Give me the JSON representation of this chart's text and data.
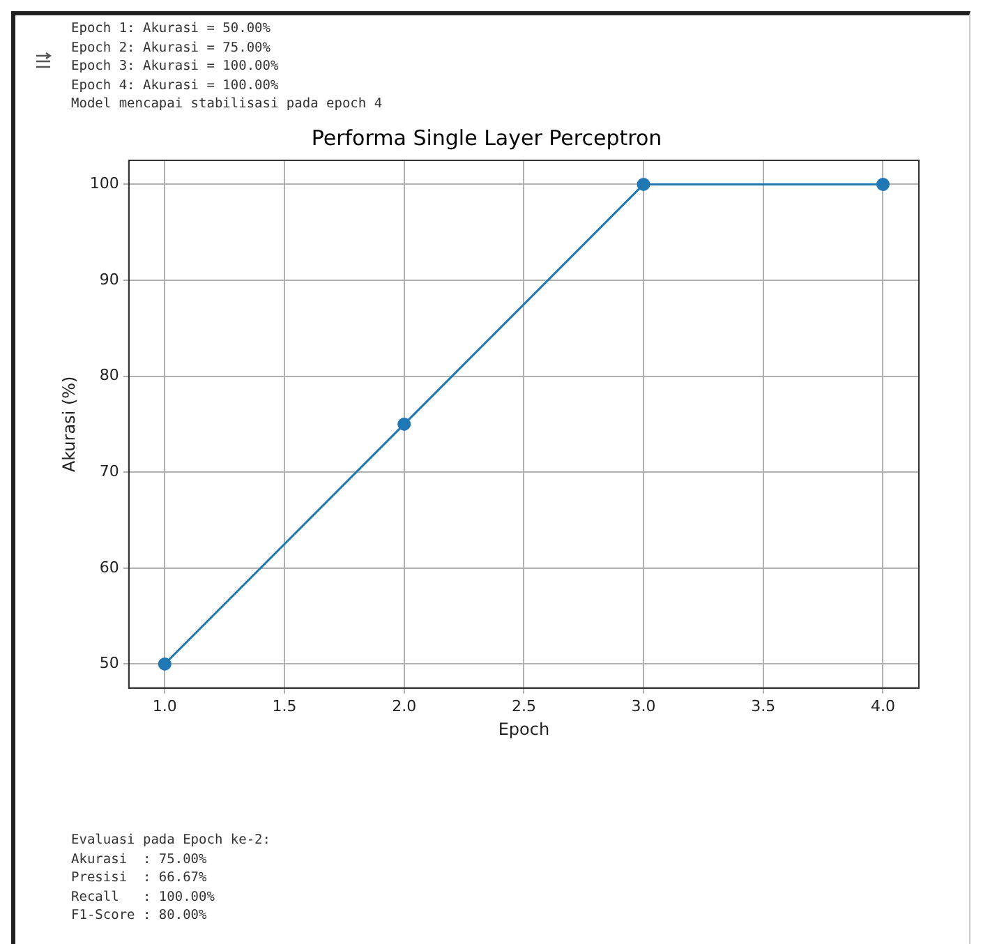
{
  "chart_data": {
    "type": "line",
    "title": "Performa Single Layer Perceptron",
    "xlabel": "Epoch",
    "ylabel": "Akurasi (%)",
    "x": [
      1,
      2,
      3,
      4
    ],
    "series": [
      {
        "color": "#1f77b4",
        "values": [
          50,
          75,
          100,
          100
        ]
      }
    ],
    "xlim": [
      0.85,
      4.15
    ],
    "ylim": [
      47.5,
      102.5
    ],
    "xticks": [
      {
        "value": 1,
        "label": "1.0"
      },
      {
        "value": 1.5,
        "label": "1.5"
      },
      {
        "value": 2,
        "label": "2.0"
      },
      {
        "value": 2.5,
        "label": "2.5"
      },
      {
        "value": 3,
        "label": "3.0"
      },
      {
        "value": 3.5,
        "label": "3.5"
      },
      {
        "value": 4,
        "label": "4.0"
      }
    ],
    "yticks": [
      50,
      60,
      70,
      80,
      90,
      100
    ],
    "grid": true,
    "marker": "circle",
    "line_style": "solid",
    "legend": false,
    "annotations": [
      "Epoch 1: Akurasi = 50.00%",
      "Epoch 2: Akurasi = 75.00%",
      "Epoch 3: Akurasi = 100.00%",
      "Epoch 4: Akurasi = 100.00%",
      "Model mencapai stabilisasi pada epoch 4",
      "Evaluasi pada Epoch ke-2:",
      "Akurasi  : 75.00%",
      "Presisi  : 66.67%",
      "Recall   : 100.00%",
      "F1-Score : 80.00%"
    ]
  }
}
